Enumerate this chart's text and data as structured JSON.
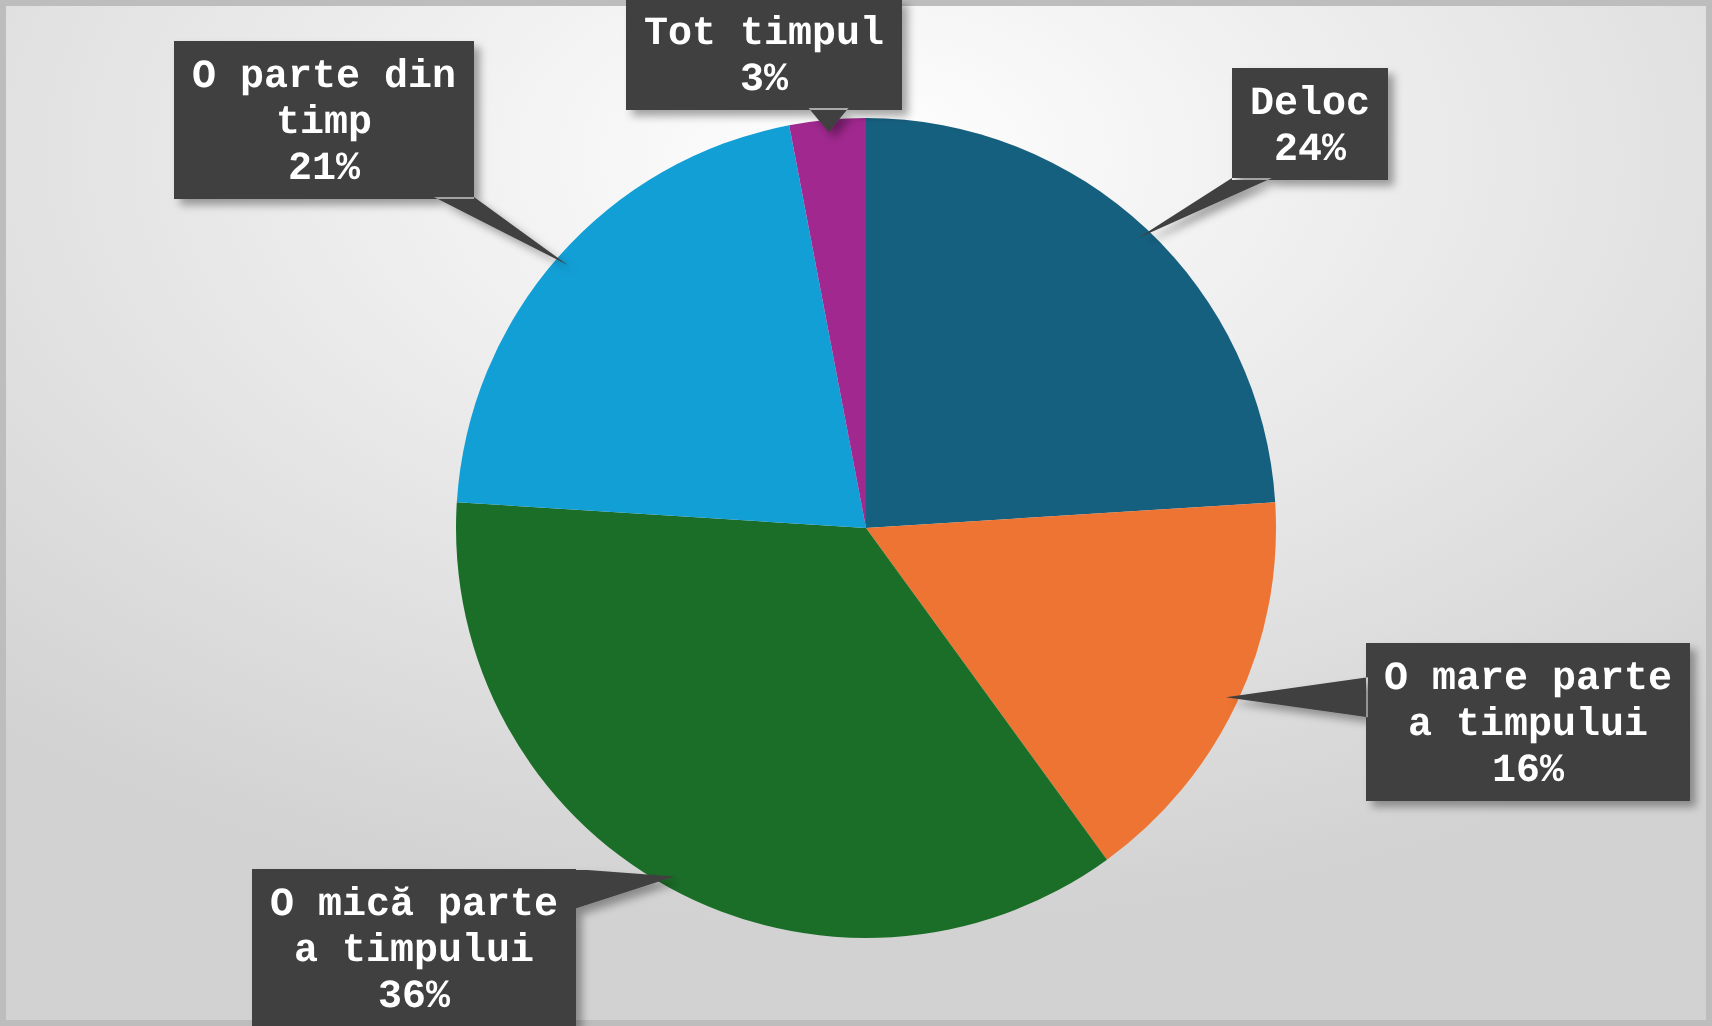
{
  "chart_data": {
    "type": "pie",
    "categories": [
      "Deloc",
      "O mare parte a timpului",
      "O mică parte a timpului",
      "O parte din timp",
      "Tot timpul"
    ],
    "values": [
      24,
      16,
      36,
      21,
      3
    ],
    "colors": [
      "#16607f",
      "#ed7432",
      "#1b6e28",
      "#129fd6",
      "#a0288f"
    ],
    "value_labels": [
      "24%",
      "16%",
      "36%",
      "21%",
      "3%"
    ]
  }
}
